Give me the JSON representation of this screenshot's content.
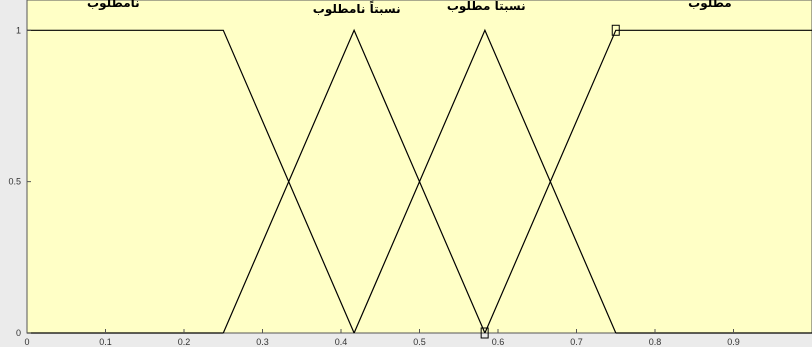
{
  "colors": {
    "plot_background": "#ffffc6",
    "figure_background": "#ebebeb",
    "axis": "#555555",
    "curve": "#000000"
  },
  "chart_data": {
    "type": "line",
    "title": "",
    "xlabel": "",
    "ylabel": "",
    "xlim": [
      0,
      1
    ],
    "ylim": [
      0,
      1.1
    ],
    "x_ticks": [
      "0",
      "0.1",
      "0.2",
      "0.3",
      "0.4",
      "0.5",
      "0.6",
      "0.7",
      "0.8",
      "0.9"
    ],
    "y_ticks": [
      "0",
      "0.5",
      "1"
    ],
    "grid": false,
    "series": [
      {
        "name": "نامطلوب",
        "x": [
          0,
          0.25,
          0.4167
        ],
        "y": [
          1,
          1,
          0
        ]
      },
      {
        "name": "نسبتاً نامطلوب",
        "x": [
          0.25,
          0.4167,
          0.5833
        ],
        "y": [
          0,
          1,
          0
        ]
      },
      {
        "name": "نسبتاً مطلوب",
        "x": [
          0.4167,
          0.5833,
          0.75
        ],
        "y": [
          0,
          1,
          0
        ]
      },
      {
        "name": "مطلوب",
        "x": [
          0.5833,
          0.75,
          1
        ],
        "y": [
          0,
          1,
          1
        ]
      },
      {
        "name": "",
        "x": [
          0,
          0.25
        ],
        "y": [
          0,
          0
        ]
      },
      {
        "name": "",
        "x": [
          0.75,
          1
        ],
        "y": [
          0,
          0
        ]
      }
    ],
    "labels": [
      {
        "text": "نامطلوب",
        "x": 0.11,
        "y": 1.09
      },
      {
        "text": "نسبتاً نامطلوب",
        "x": 0.42,
        "y": 1.07
      },
      {
        "text": "نسبتاً مطلوب",
        "x": 0.585,
        "y": 1.08
      },
      {
        "text": "مطلوب",
        "x": 0.87,
        "y": 1.09
      }
    ],
    "markers": [
      {
        "x": 0.75,
        "y": 1
      },
      {
        "x": 0.583,
        "y": 0
      }
    ]
  }
}
